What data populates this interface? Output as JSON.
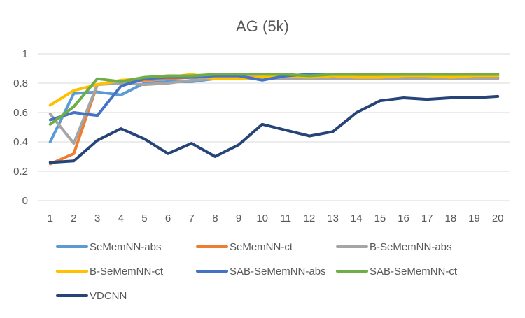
{
  "chart_data": {
    "type": "line",
    "title": "AG (5k)",
    "xlabel": "",
    "ylabel": "",
    "x": [
      1,
      2,
      3,
      4,
      5,
      6,
      7,
      8,
      9,
      10,
      11,
      12,
      13,
      14,
      15,
      16,
      17,
      18,
      19,
      20
    ],
    "ylim": [
      0,
      1
    ],
    "yticks": [
      "0",
      "0.2",
      "0.4",
      "0.6",
      "0.8",
      "1"
    ],
    "grid": true,
    "legend_position": "bottom",
    "series": [
      {
        "name": "SeMemNN-abs",
        "color": "#5B9BD5",
        "values": [
          0.4,
          0.73,
          0.74,
          0.72,
          0.8,
          0.81,
          0.81,
          0.83,
          0.84,
          0.83,
          0.84,
          0.83,
          0.84,
          0.84,
          0.84,
          0.84,
          0.84,
          0.84,
          0.84,
          0.84
        ]
      },
      {
        "name": "SeMemNN-ct",
        "color": "#ED7D31",
        "values": [
          0.25,
          0.32,
          0.79,
          0.81,
          0.82,
          0.83,
          0.84,
          0.84,
          0.84,
          0.84,
          0.85,
          0.85,
          0.85,
          0.85,
          0.85,
          0.85,
          0.85,
          0.85,
          0.85,
          0.85
        ]
      },
      {
        "name": "B-SeMemNN-abs",
        "color": "#A5A5A5",
        "values": [
          0.59,
          0.39,
          0.79,
          0.8,
          0.79,
          0.8,
          0.82,
          0.83,
          0.83,
          0.83,
          0.83,
          0.83,
          0.83,
          0.83,
          0.83,
          0.83,
          0.83,
          0.83,
          0.83,
          0.83
        ]
      },
      {
        "name": "B-SeMemNN-ct",
        "color": "#FFC000",
        "values": [
          0.65,
          0.75,
          0.79,
          0.82,
          0.83,
          0.84,
          0.86,
          0.83,
          0.83,
          0.84,
          0.85,
          0.84,
          0.85,
          0.84,
          0.84,
          0.85,
          0.85,
          0.84,
          0.85,
          0.85
        ]
      },
      {
        "name": "SAB-SeMemNN-abs",
        "color": "#4472C4",
        "values": [
          0.55,
          0.6,
          0.58,
          0.78,
          0.83,
          0.84,
          0.84,
          0.85,
          0.85,
          0.82,
          0.85,
          0.86,
          0.86,
          0.86,
          0.86,
          0.86,
          0.86,
          0.86,
          0.86,
          0.86
        ]
      },
      {
        "name": "SAB-SeMemNN-ct",
        "color": "#70AD47",
        "values": [
          0.52,
          0.64,
          0.83,
          0.81,
          0.84,
          0.85,
          0.85,
          0.86,
          0.86,
          0.86,
          0.86,
          0.85,
          0.86,
          0.86,
          0.86,
          0.86,
          0.86,
          0.86,
          0.86,
          0.86
        ]
      },
      {
        "name": "VDCNN",
        "color": "#264478",
        "values": [
          0.26,
          0.27,
          0.41,
          0.49,
          0.42,
          0.32,
          0.39,
          0.3,
          0.38,
          0.52,
          0.48,
          0.44,
          0.47,
          0.6,
          0.68,
          0.7,
          0.69,
          0.7,
          0.7,
          0.71
        ]
      }
    ]
  }
}
